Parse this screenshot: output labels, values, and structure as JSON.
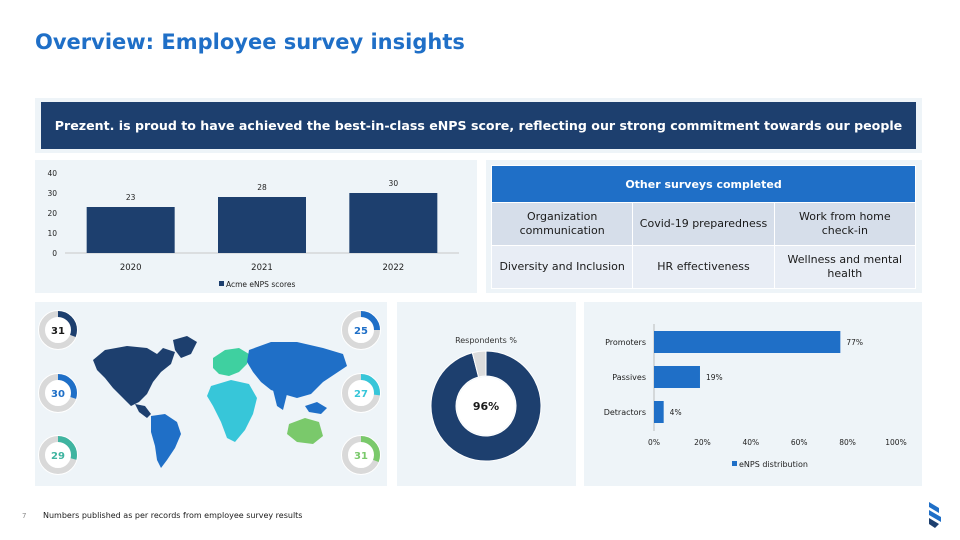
{
  "title": "Overview: Employee survey insights",
  "banner": "Prezent. is proud to have achieved the best-in-class eNPS score, reflecting our strong commitment towards our people",
  "colors": {
    "navy": "#1d3f6e",
    "blue": "#1f6fc7",
    "teal": "#37c6d9",
    "green": "#7ac96b",
    "panel": "#eef4f8"
  },
  "chart_data": [
    {
      "type": "bar",
      "categories": [
        "2020",
        "2021",
        "2022"
      ],
      "series": [
        {
          "name": "Acme eNPS scores",
          "values": [
            23,
            28,
            30
          ]
        }
      ],
      "ylim": [
        0,
        40
      ],
      "yticks": [
        "0",
        "10",
        "20",
        "30",
        "40"
      ],
      "legend": "bottom"
    },
    {
      "type": "pie",
      "title": "Respondents %",
      "values": [
        96,
        4
      ],
      "center_label": "96%"
    },
    {
      "type": "bar",
      "orientation": "horizontal",
      "categories": [
        "Promoters",
        "Passives",
        "Detractors"
      ],
      "series": [
        {
          "name": "eNPS distribution",
          "values": [
            77,
            19,
            4
          ]
        }
      ],
      "value_labels": [
        "77%",
        "19%",
        "4%"
      ],
      "xlim": [
        0,
        100
      ],
      "xticks": [
        "0%",
        "20%",
        "40%",
        "60%",
        "80%",
        "100%"
      ],
      "legend": "bottom"
    }
  ],
  "surveys": {
    "header": "Other surveys completed",
    "rows": [
      [
        "Organization communication",
        "Covid-19 preparedness",
        "Work from home check-in"
      ],
      [
        "Diversity and Inclusion",
        "HR effectiveness",
        "Wellness and mental health"
      ]
    ]
  },
  "regions": {
    "left": [
      {
        "label": "31",
        "fraction": 0.31,
        "color": "#1d3f6e"
      },
      {
        "label": "30",
        "fraction": 0.3,
        "color": "#1f6fc7"
      },
      {
        "label": "29",
        "fraction": 0.29,
        "color": "#3fb4a0"
      }
    ],
    "right": [
      {
        "label": "25",
        "fraction": 0.25,
        "color": "#1f6fc7"
      },
      {
        "label": "27",
        "fraction": 0.27,
        "color": "#37c6d9"
      },
      {
        "label": "31",
        "fraction": 0.31,
        "color": "#7ac96b"
      }
    ]
  },
  "footer": {
    "page": "7",
    "note": "Numbers published as per records from employee survey results"
  }
}
